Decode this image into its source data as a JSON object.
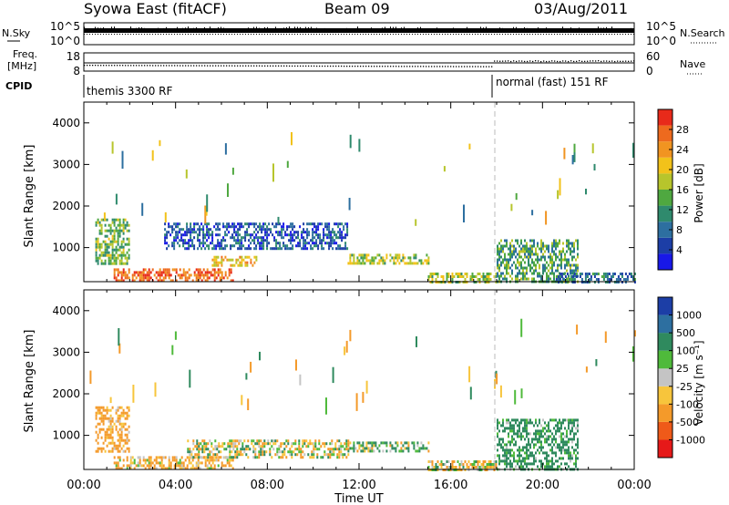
{
  "header": {
    "title": "Syowa East (fitACF)",
    "beam": "Beam 09",
    "date": "03/Aug/2011"
  },
  "noise_panel": {
    "left_label": "N.Sky",
    "left_ticks": [
      "10^5",
      "10^0"
    ],
    "right_label": "N.Search",
    "right_ticks": [
      "10^5",
      "10^0"
    ]
  },
  "freq_panel": {
    "left_label_1": "Freq.",
    "left_label_2": "[MHz]",
    "left_ticks": [
      "18",
      "8"
    ],
    "right_label": "Nave",
    "right_ticks": [
      "60",
      "0"
    ]
  },
  "cpid_panel": {
    "label": "CPID",
    "modes": [
      {
        "name": "themis 3300 RF",
        "start_hour": 0
      },
      {
        "name": "normal (fast) 151 RF",
        "start_hour": 18
      }
    ]
  },
  "time_axis": {
    "label": "Time UT",
    "ticks": [
      "00:00",
      "04:00",
      "08:00",
      "12:00",
      "16:00",
      "20:00",
      "00:00"
    ]
  },
  "power_panel": {
    "ylabel": "Slant Range [km]",
    "yticks": [
      "1000",
      "2000",
      "3000",
      "4000"
    ],
    "colorbar_label": "Power [dB]",
    "colorbar_ticks": [
      "28",
      "24",
      "20",
      "16",
      "12",
      "8",
      "4"
    ]
  },
  "velocity_panel": {
    "ylabel": "Slant Range [km]",
    "yticks": [
      "1000",
      "2000",
      "3000",
      "4000"
    ],
    "colorbar_label": "Velocity [m s⁻¹]",
    "colorbar_ticks": [
      "1000",
      "500",
      "100",
      "25",
      "-25",
      "-100",
      "-500",
      "-1000"
    ]
  },
  "chart_data": [
    {
      "type": "heatmap",
      "title": "Power",
      "xlabel": "Time UT",
      "ylabel": "Slant Range [km]",
      "xlim": [
        0,
        24
      ],
      "ylim": [
        180,
        4500
      ],
      "colorbar": {
        "label": "Power [dB]",
        "range": [
          0,
          30
        ],
        "ticks": [
          4,
          8,
          12,
          16,
          20,
          24,
          28
        ],
        "colors": [
          "#1818e8",
          "#1c3ea6",
          "#2d6fa0",
          "#2f8a6d",
          "#4fa840",
          "#b7c52c",
          "#f2c21a",
          "#f19421",
          "#ee6a1e",
          "#e82a1a"
        ]
      },
      "regions": [
        {
          "t": [
            1.3,
            6.5
          ],
          "r": [
            180,
            500
          ],
          "value": 26
        },
        {
          "t": [
            5.5,
            7.5
          ],
          "r": [
            600,
            800
          ],
          "value": 20
        },
        {
          "t": [
            11.5,
            15.0
          ],
          "r": [
            650,
            850
          ],
          "value": 16
        },
        {
          "t": [
            0.5,
            2.0
          ],
          "r": [
            600,
            1700
          ],
          "value": 14
        },
        {
          "t": [
            15.0,
            18.0
          ],
          "r": [
            180,
            400
          ],
          "value": 16
        },
        {
          "t": [
            18.0,
            21.5
          ],
          "r": [
            180,
            1200
          ],
          "value": 12
        },
        {
          "t": [
            3.5,
            11.5
          ],
          "r": [
            1000,
            1600
          ],
          "value": 6
        },
        {
          "t": [
            20.5,
            24.0
          ],
          "r": [
            180,
            400
          ],
          "value": 8
        }
      ]
    },
    {
      "type": "heatmap",
      "title": "Velocity",
      "xlabel": "Time UT",
      "ylabel": "Slant Range [km]",
      "xlim": [
        0,
        24
      ],
      "ylim": [
        180,
        4500
      ],
      "colorbar": {
        "label": "Velocity [m s⁻¹]",
        "range": [
          -1000,
          1000
        ],
        "ticks": [
          -1000,
          -500,
          -100,
          -25,
          25,
          100,
          500,
          1000
        ],
        "colors": [
          "#e61919",
          "#ef5a19",
          "#f49a2a",
          "#f7c53c",
          "#c4c4c4",
          "#4fba3b",
          "#2f8a5e",
          "#2d6fa0",
          "#1c3ea6"
        ]
      },
      "regions": [
        {
          "t": [
            1.3,
            6.5
          ],
          "r": [
            180,
            500
          ],
          "value": -120
        },
        {
          "t": [
            4.5,
            11.5
          ],
          "r": [
            500,
            900
          ],
          "value": 0
        },
        {
          "t": [
            11.5,
            15.0
          ],
          "r": [
            650,
            850
          ],
          "value": 60
        },
        {
          "t": [
            0.5,
            2.0
          ],
          "r": [
            600,
            1700
          ],
          "value": -200
        },
        {
          "t": [
            18.0,
            21.5
          ],
          "r": [
            180,
            1400
          ],
          "value": 200
        },
        {
          "t": [
            15.0,
            18.0
          ],
          "r": [
            180,
            400
          ],
          "value": -60
        }
      ]
    }
  ]
}
